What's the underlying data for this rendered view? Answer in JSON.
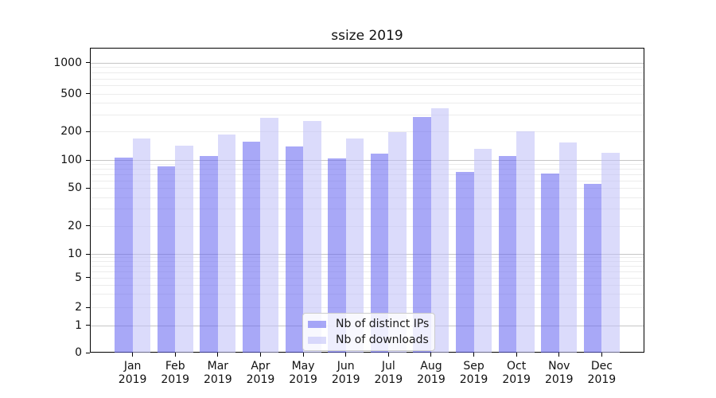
{
  "chart_data": {
    "type": "bar",
    "title": "ssize 2019",
    "year_label": "2019",
    "categories": [
      "Jan",
      "Feb",
      "Mar",
      "Apr",
      "May",
      "Jun",
      "Jul",
      "Aug",
      "Sep",
      "Oct",
      "Nov",
      "Dec"
    ],
    "series": [
      {
        "name": "Nb of distinct IPs",
        "fill": "rgba(100,100,240,0.56)",
        "solid_color": "#a8a8f7",
        "values": [
          105,
          86,
          111,
          156,
          138,
          104,
          117,
          282,
          75,
          110,
          72,
          55
        ]
      },
      {
        "name": "Nb of downloads",
        "fill": "rgba(190,190,248,0.56)",
        "solid_color": "#dbdbfb",
        "values": [
          168,
          141,
          184,
          275,
          255,
          169,
          196,
          348,
          132,
          200,
          153,
          119
        ]
      }
    ],
    "yscale": "symlog",
    "yticks": [
      0,
      1,
      2,
      5,
      10,
      20,
      50,
      100,
      200,
      500,
      1000
    ],
    "ylim": [
      0,
      1400
    ],
    "grid": true,
    "legend_position": "lower center",
    "colors": {
      "major_grid": "#c6c6c6",
      "minor_grid": "#ececec",
      "spine": "#000000",
      "legend_border": "#cccccc"
    }
  }
}
